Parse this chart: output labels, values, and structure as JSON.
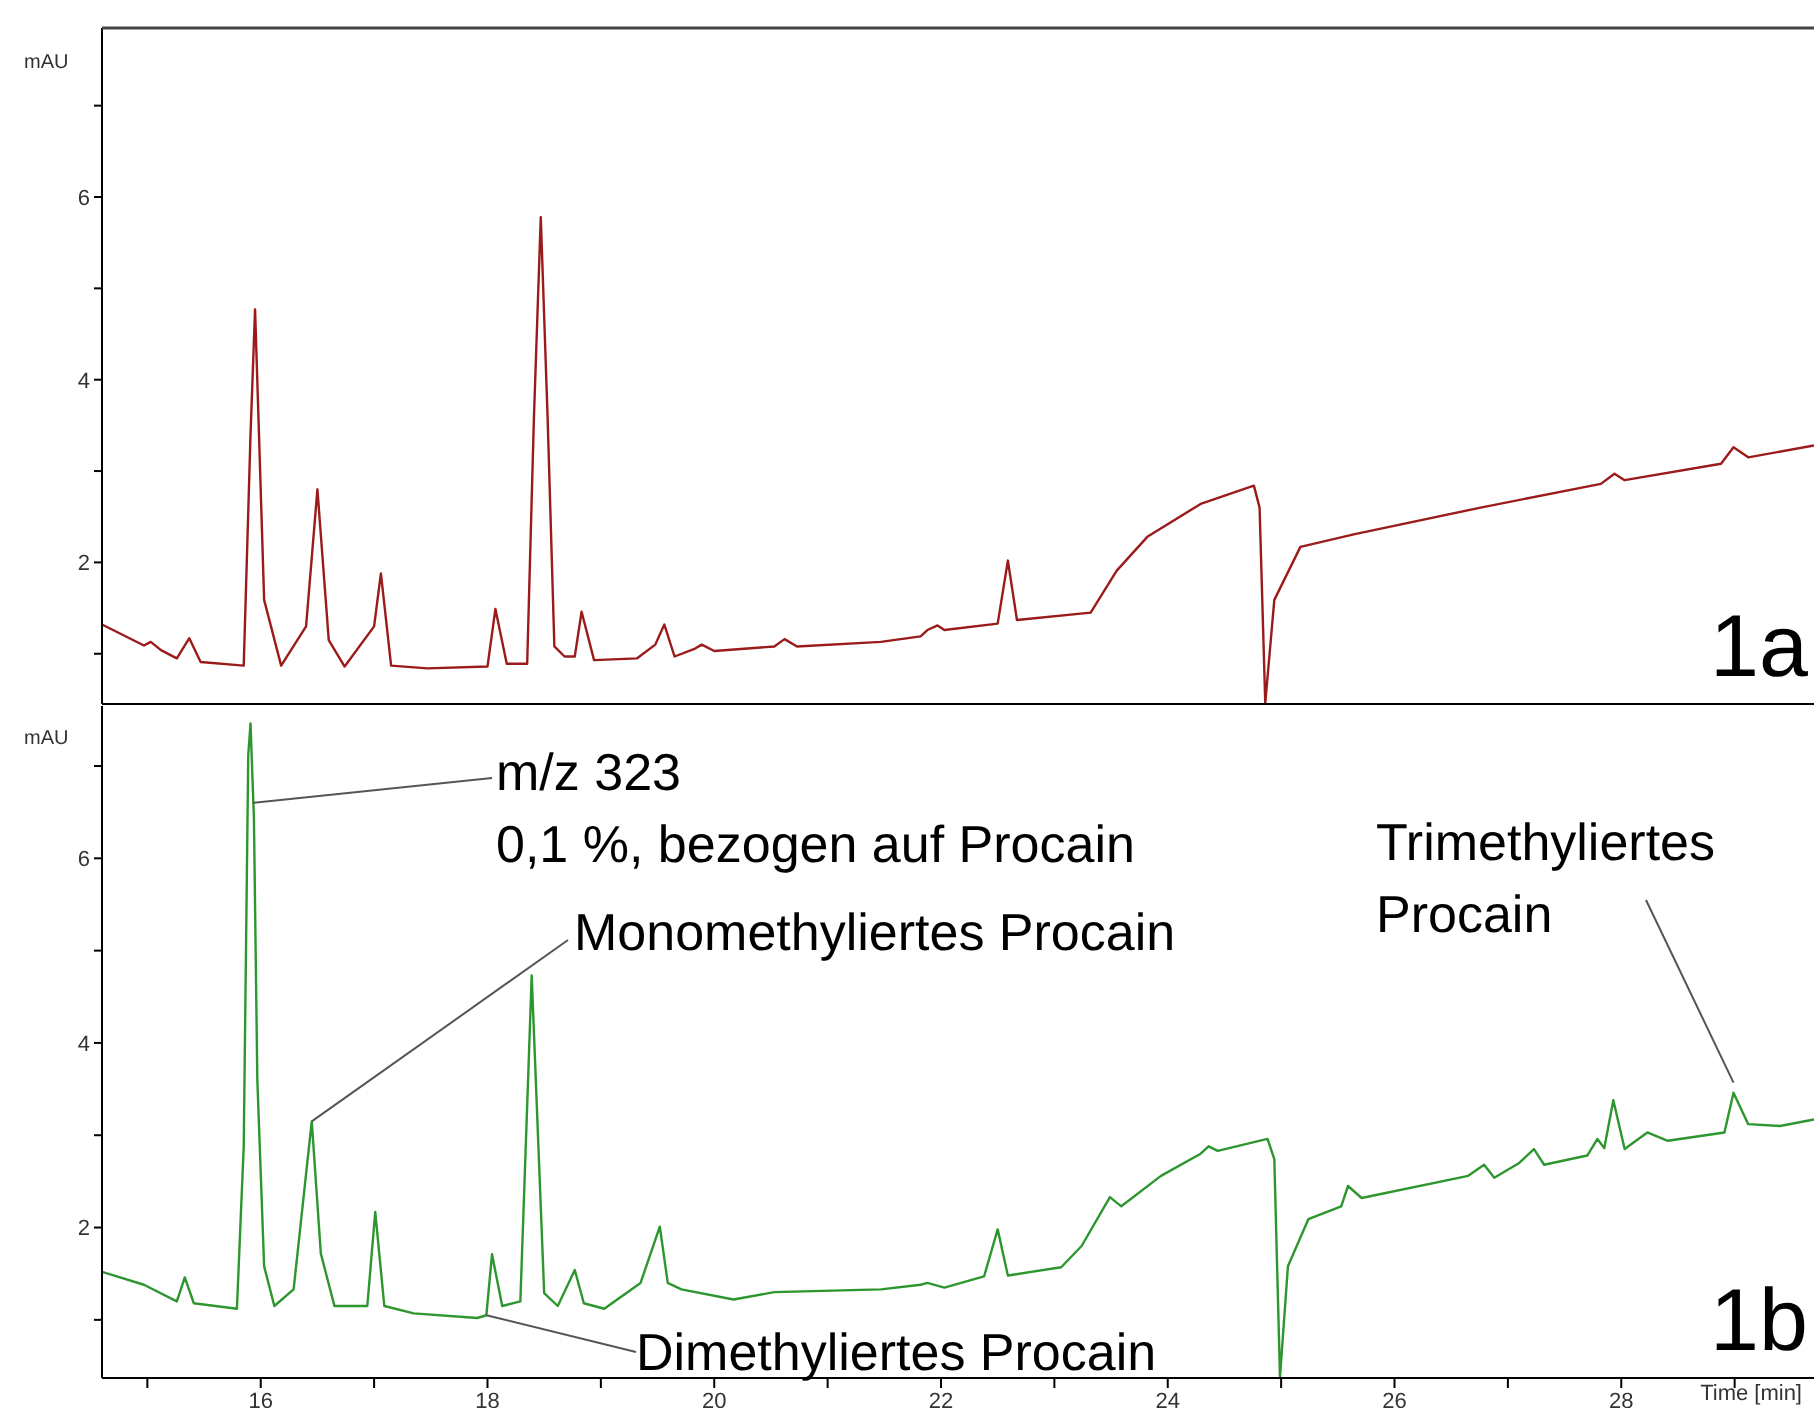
{
  "chart_data": [
    {
      "type": "line",
      "ylabel": "mAU",
      "xlim": [
        14.6,
        29.7
      ],
      "ylim": [
        0.45,
        7.85
      ],
      "yticks": [
        {
          "value": 1,
          "label": null
        },
        2,
        {
          "value": 3,
          "label": null
        },
        4,
        {
          "value": 5,
          "label": null
        },
        6,
        {
          "value": 7,
          "label": null
        }
      ],
      "tick_labels": "y",
      "grid": false,
      "legend": false,
      "marker": "none",
      "line_style": "solid",
      "annotations": [
        "1a"
      ],
      "series": [
        {
          "color": "#9b1b1b",
          "x": [
            14.6,
            14.97,
            15.03,
            15.12,
            15.26,
            15.37,
            15.47,
            15.85,
            15.91,
            15.95,
            15.99,
            16.03,
            16.18,
            16.4,
            16.5,
            16.6,
            16.74,
            17.0,
            17.06,
            17.15,
            17.47,
            18.0,
            18.07,
            18.17,
            18.35,
            18.41,
            18.47,
            18.53,
            18.59,
            18.68,
            18.77,
            18.83,
            18.94,
            19.32,
            19.48,
            19.56,
            19.65,
            19.82,
            19.89,
            20.0,
            20.53,
            20.62,
            20.73,
            21.47,
            21.82,
            21.88,
            21.97,
            22.03,
            22.5,
            22.59,
            22.67,
            23.32,
            23.55,
            23.82,
            24.29,
            24.76,
            24.81,
            24.86,
            24.94,
            25.17,
            25.65,
            26.76,
            27.82,
            27.94,
            28.03,
            28.88,
            28.99,
            29.12,
            29.7
          ],
          "values": [
            1.32,
            1.09,
            1.13,
            1.04,
            0.95,
            1.17,
            0.91,
            0.87,
            3.4,
            4.77,
            3.19,
            1.59,
            0.87,
            1.3,
            2.8,
            1.15,
            0.86,
            1.3,
            1.88,
            0.87,
            0.84,
            0.86,
            1.49,
            0.89,
            0.89,
            3.6,
            5.78,
            3.6,
            1.08,
            0.97,
            0.97,
            1.46,
            0.93,
            0.95,
            1.1,
            1.32,
            0.97,
            1.05,
            1.1,
            1.03,
            1.08,
            1.16,
            1.08,
            1.13,
            1.19,
            1.26,
            1.31,
            1.26,
            1.33,
            2.02,
            1.37,
            1.45,
            1.91,
            2.28,
            2.64,
            2.84,
            2.6,
            0.46,
            1.59,
            2.17,
            2.31,
            2.6,
            2.86,
            2.97,
            2.9,
            3.08,
            3.26,
            3.15,
            3.28
          ]
        }
      ]
    },
    {
      "type": "line",
      "ylabel": "mAU",
      "xlabel": "Time [min]",
      "xlim": [
        14.6,
        29.7
      ],
      "xticks": [
        {
          "value": 15,
          "label": null
        },
        16,
        {
          "value": 17,
          "label": null
        },
        18,
        {
          "value": 19,
          "label": null
        },
        20,
        {
          "value": 21,
          "label": null
        },
        22,
        {
          "value": 23,
          "label": null
        },
        24,
        {
          "value": 25,
          "label": null
        },
        26,
        {
          "value": 27,
          "label": null
        },
        28,
        {
          "value": 29,
          "label": null
        }
      ],
      "ylim": [
        0.37,
        7.65
      ],
      "yticks": [
        {
          "value": 1,
          "label": null
        },
        2,
        {
          "value": 3,
          "label": null
        },
        4,
        {
          "value": 5,
          "label": null
        },
        6,
        {
          "value": 7,
          "label": null
        }
      ],
      "grid": false,
      "legend": false,
      "marker": "none",
      "line_style": "solid",
      "annotations": [
        {
          "text": "m/z 323\n0,1 %, bezogen auf Procain",
          "x": 15.93,
          "y": 6.6
        },
        {
          "text": "Monomethyliertes Procain",
          "x": 16.45,
          "y": 3.15
        },
        {
          "text": "Dimethyliertes Procain",
          "x": 17.99,
          "y": 1.05
        },
        {
          "text": "Trimethyliertes\nProcain",
          "x": 28.99,
          "y": 3.57
        },
        "1b"
      ],
      "series": [
        {
          "color": "#2e962e",
          "x": [
            14.6,
            14.97,
            15.26,
            15.33,
            15.41,
            15.79,
            15.85,
            15.89,
            15.91,
            15.94,
            15.97,
            16.03,
            16.12,
            16.29,
            16.45,
            16.53,
            16.65,
            16.94,
            17.01,
            17.09,
            17.35,
            17.91,
            17.99,
            18.04,
            18.13,
            18.29,
            18.39,
            18.5,
            18.62,
            18.77,
            18.85,
            19.03,
            19.35,
            19.52,
            19.59,
            19.71,
            20.17,
            20.53,
            21.47,
            21.82,
            21.88,
            22.03,
            22.38,
            22.5,
            22.59,
            23.06,
            23.24,
            23.49,
            23.59,
            23.94,
            24.29,
            24.36,
            24.44,
            24.88,
            24.94,
            24.99,
            25.06,
            25.24,
            25.53,
            25.59,
            25.71,
            26.65,
            26.79,
            26.88,
            27.1,
            27.23,
            27.32,
            27.7,
            27.79,
            27.85,
            27.93,
            28.03,
            28.23,
            28.41,
            28.91,
            28.99,
            29.12,
            29.4,
            29.7
          ],
          "values": [
            1.52,
            1.38,
            1.2,
            1.46,
            1.18,
            1.12,
            2.88,
            7.12,
            7.46,
            6.43,
            3.6,
            1.58,
            1.15,
            1.33,
            3.15,
            1.72,
            1.15,
            1.15,
            2.17,
            1.15,
            1.07,
            1.02,
            1.05,
            1.71,
            1.15,
            1.2,
            4.73,
            1.29,
            1.15,
            1.54,
            1.18,
            1.12,
            1.4,
            2.01,
            1.4,
            1.33,
            1.22,
            1.3,
            1.33,
            1.38,
            1.4,
            1.35,
            1.47,
            1.98,
            1.48,
            1.57,
            1.8,
            2.33,
            2.23,
            2.56,
            2.8,
            2.88,
            2.83,
            2.96,
            2.74,
            0.38,
            1.58,
            2.09,
            2.23,
            2.45,
            2.32,
            2.56,
            2.68,
            2.54,
            2.7,
            2.85,
            2.68,
            2.78,
            2.96,
            2.86,
            3.38,
            2.85,
            3.03,
            2.94,
            3.03,
            3.46,
            3.12,
            3.1,
            3.17
          ]
        }
      ]
    }
  ]
}
